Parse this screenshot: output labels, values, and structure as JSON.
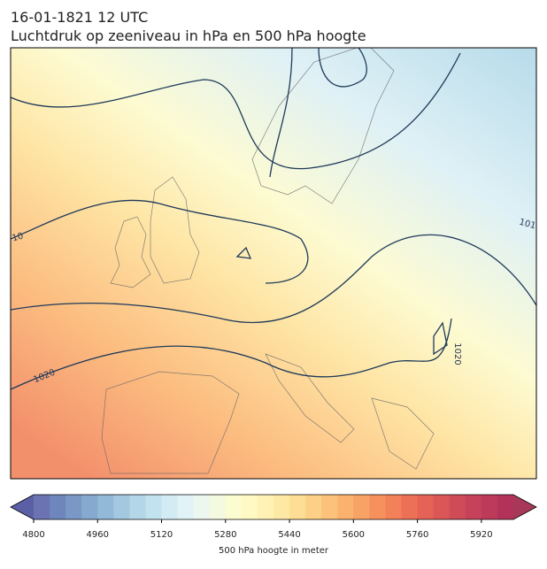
{
  "header": {
    "line1": "16-01-1821 12 UTC",
    "line2": "Luchtdruk op zeeniveau in hPa en 500 hPa hoogte"
  },
  "map": {
    "contour_labels": [
      "10",
      "101",
      "1020",
      "1020"
    ]
  },
  "colorbar": {
    "label": "500 hPa hoogte in meter",
    "lim": [
      4800,
      6000
    ],
    "step": 40,
    "ticks": [
      4800,
      4960,
      5120,
      5280,
      5440,
      5600,
      5760,
      5920
    ],
    "under_color": "#5b5fa6",
    "over_color": "#a83859",
    "colors": [
      "#6b73b3",
      "#6f86bd",
      "#7a98c6",
      "#86a9cf",
      "#93b9d8",
      "#a3c8e0",
      "#b3d6e8",
      "#c3e2ef",
      "#d3ecf4",
      "#e2f3f7",
      "#ecf7f0",
      "#f4fae0",
      "#fbfcd0",
      "#fff9c4",
      "#fff2b4",
      "#fee9a4",
      "#fedd94",
      "#fdd087",
      "#fcc27b",
      "#fbb26f",
      "#f9a265",
      "#f6915e",
      "#f28059",
      "#ec7056",
      "#e46256",
      "#da5657",
      "#cf4b58",
      "#c6425a",
      "#bd3a5a",
      "#b3325a"
    ]
  }
}
